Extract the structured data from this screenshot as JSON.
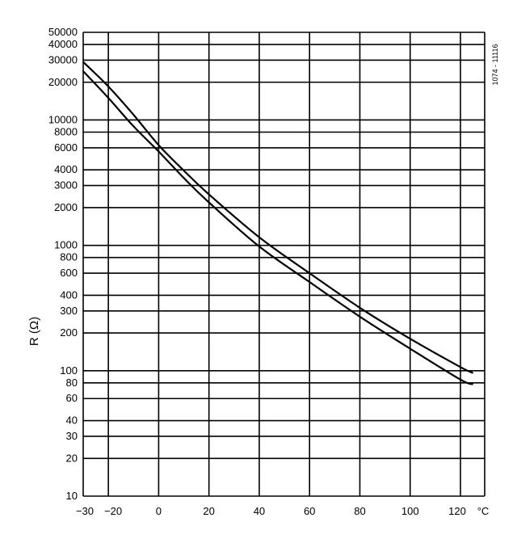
{
  "chart_data": {
    "type": "line",
    "title": "",
    "figure_code": "1074 - 11116",
    "xlabel": "",
    "ylabel": "R (Ω)",
    "x_unit": "°C",
    "xlim": [
      -30,
      125
    ],
    "ylim": [
      10,
      50000
    ],
    "yscale": "log",
    "grid": true,
    "x_ticks": [
      -30,
      -20,
      0,
      20,
      40,
      60,
      80,
      100,
      120
    ],
    "x_tick_labels": [
      "−30",
      "−20",
      "0",
      "20",
      "40",
      "60",
      "80",
      "100",
      "120"
    ],
    "y_ticks": [
      10,
      20,
      30,
      40,
      60,
      80,
      100,
      200,
      300,
      400,
      600,
      800,
      1000,
      2000,
      3000,
      4000,
      6000,
      8000,
      10000,
      20000,
      30000,
      40000,
      50000
    ],
    "y_tick_labels": [
      "10",
      "20",
      "30",
      "40",
      "60",
      "80",
      "100",
      "200",
      "300",
      "400",
      "600",
      "800",
      "1000",
      "2000",
      "3000",
      "4000",
      "6000",
      "8000",
      "10000",
      "20000",
      "30000",
      "40000",
      "50000"
    ],
    "series": [
      {
        "x": [
          -30,
          -20,
          -10,
          0,
          10,
          20,
          40,
          60,
          80,
          100,
          120,
          125
        ],
        "y": [
          29000,
          18500,
          11000,
          6300,
          3950,
          2550,
          1160,
          600,
          318,
          180,
          107,
          96
        ]
      },
      {
        "x": [
          -30,
          -20,
          -10,
          0,
          10,
          20,
          40,
          60,
          80,
          100,
          120,
          125
        ],
        "y": [
          24500,
          15000,
          8900,
          5600,
          3450,
          2200,
          980,
          510,
          270,
          150,
          85,
          78
        ]
      }
    ]
  }
}
